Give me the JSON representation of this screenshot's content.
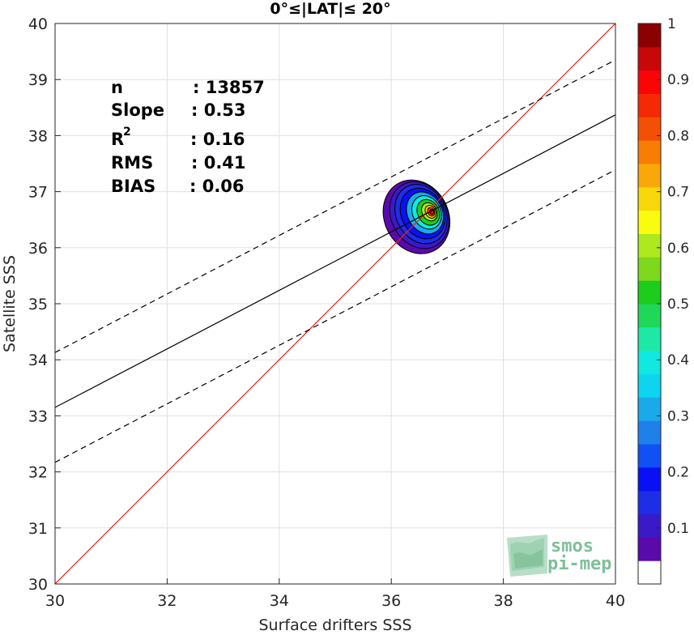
{
  "chart_data": {
    "type": "scatter",
    "title": "0°≤|LAT|≤ 20°",
    "xlabel": "Surface drifters SSS",
    "ylabel": "Satellite SSS",
    "xlim": [
      30,
      40
    ],
    "ylim": [
      30,
      40
    ],
    "x_ticks": [
      "30",
      "32",
      "34",
      "36",
      "38",
      "40"
    ],
    "y_ticks": [
      "30",
      "31",
      "32",
      "33",
      "34",
      "35",
      "36",
      "37",
      "38",
      "39",
      "40"
    ],
    "grid": true,
    "stats": [
      {
        "label": "n",
        "value": ": 13857"
      },
      {
        "label": "Slope",
        "value": ": 0.53"
      },
      {
        "label": "R",
        "sup": "2",
        "value": ": 0.16"
      },
      {
        "label": "RMS",
        "value": ": 0.41"
      },
      {
        "label": "BIAS",
        "value": ": 0.06"
      }
    ],
    "lines": [
      {
        "name": "identity",
        "color": "#e8231b",
        "style": "solid",
        "x": [
          30,
          40
        ],
        "y": [
          30,
          40
        ]
      },
      {
        "name": "fit",
        "color": "#000000",
        "style": "solid",
        "x": [
          30,
          40
        ],
        "y": [
          33.15,
          38.37
        ]
      },
      {
        "name": "fit_upper",
        "color": "#000000",
        "style": "dashed",
        "x": [
          30,
          40
        ],
        "y": [
          34.13,
          39.35
        ]
      },
      {
        "name": "fit_lower",
        "color": "#000000",
        "style": "dashed",
        "x": [
          30,
          40
        ],
        "y": [
          32.17,
          37.39
        ]
      }
    ],
    "density_peak": {
      "x": 36.72,
      "y": 36.64
    },
    "density_contours": [
      {
        "level": 0.05,
        "cx": 36.45,
        "cy": 36.55,
        "rx": 0.57,
        "ry": 0.68
      },
      {
        "level": 0.1,
        "cx": 36.5,
        "cy": 36.58,
        "rx": 0.5,
        "ry": 0.62
      },
      {
        "level": 0.15,
        "cx": 36.53,
        "cy": 36.6,
        "rx": 0.44,
        "ry": 0.55
      },
      {
        "level": 0.2,
        "cx": 36.56,
        "cy": 36.61,
        "rx": 0.38,
        "ry": 0.47
      },
      {
        "level": 0.3,
        "cx": 36.6,
        "cy": 36.62,
        "rx": 0.31,
        "ry": 0.39
      },
      {
        "level": 0.4,
        "cx": 36.63,
        "cy": 36.63,
        "rx": 0.25,
        "ry": 0.31
      },
      {
        "level": 0.5,
        "cx": 36.66,
        "cy": 36.63,
        "rx": 0.19,
        "ry": 0.24
      },
      {
        "level": 0.6,
        "cx": 36.68,
        "cy": 36.64,
        "rx": 0.13,
        "ry": 0.17
      },
      {
        "level": 0.7,
        "cx": 36.7,
        "cy": 36.64,
        "rx": 0.09,
        "ry": 0.12
      },
      {
        "level": 0.8,
        "cx": 36.71,
        "cy": 36.64,
        "rx": 0.06,
        "ry": 0.08
      },
      {
        "level": 0.9,
        "cx": 36.72,
        "cy": 36.64,
        "rx": 0.035,
        "ry": 0.045
      }
    ],
    "colorbar": {
      "min": 0,
      "max": 1,
      "ticks": [
        "0.1",
        "0.2",
        "0.3",
        "0.4",
        "0.5",
        "0.6",
        "0.7",
        "0.8",
        "0.9",
        "1"
      ],
      "colors": [
        "#ffffff",
        "#5a0aaa",
        "#3a19c8",
        "#1e2de6",
        "#0a10f5",
        "#1050f5",
        "#1f80ea",
        "#1aaaea",
        "#0dd5f0",
        "#10e8e0",
        "#1ee8a6",
        "#20d858",
        "#1ccd1c",
        "#7dd81e",
        "#aee81e",
        "#fbfb10",
        "#f8d80a",
        "#f8a808",
        "#f87d05",
        "#f45005",
        "#f52a05",
        "#f90505",
        "#c80808",
        "#8b0000"
      ]
    }
  },
  "watermark": {
    "line1": "smos",
    "line2": "pi-mep"
  }
}
